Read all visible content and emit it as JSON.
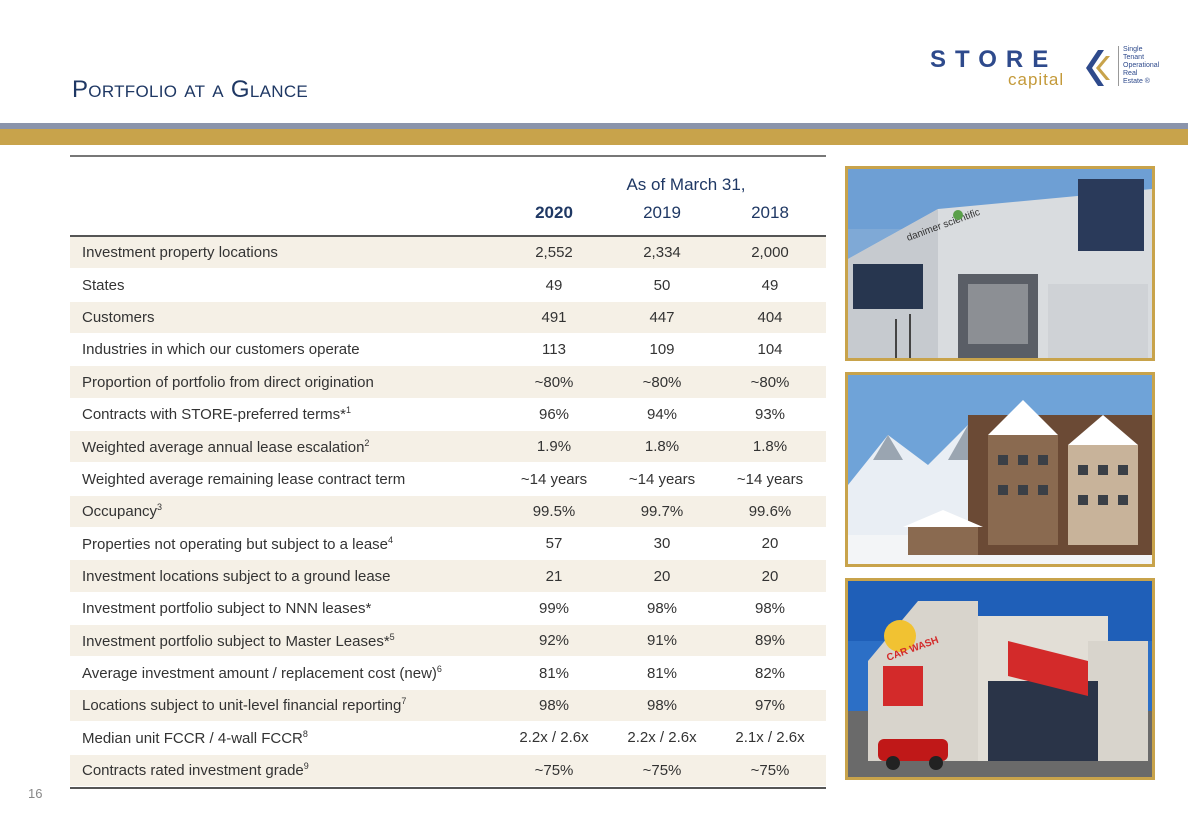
{
  "title": "Portfolio at a Glance",
  "logo": {
    "wordmark": "STORE",
    "sub": "capital",
    "tagline": [
      "Single",
      "Tenant",
      "Operational",
      "Real",
      "Estate ®"
    ]
  },
  "table": {
    "as_of": "As of March 31,",
    "years": [
      "2020",
      "2019",
      "2018"
    ],
    "rows": [
      {
        "label": "Investment property locations",
        "sup": "",
        "values": [
          "2,552",
          "2,334",
          "2,000"
        ]
      },
      {
        "label": "States",
        "sup": "",
        "values": [
          "49",
          "50",
          "49"
        ]
      },
      {
        "label": "Customers",
        "sup": "",
        "values": [
          "491",
          "447",
          "404"
        ]
      },
      {
        "label": "Industries in which our customers operate",
        "sup": "",
        "values": [
          "113",
          "109",
          "104"
        ]
      },
      {
        "label": "Proportion of portfolio from direct origination",
        "sup": "",
        "values": [
          "~80%",
          "~80%",
          "~80%"
        ]
      },
      {
        "label": "Contracts with STORE-preferred terms*",
        "sup": "1",
        "values": [
          "96%",
          "94%",
          "93%"
        ]
      },
      {
        "label": "Weighted average annual lease escalation",
        "sup": "2",
        "values": [
          "1.9%",
          "1.8%",
          "1.8%"
        ]
      },
      {
        "label": "Weighted average remaining lease contract term",
        "sup": "",
        "values": [
          "~14 years",
          "~14 years",
          "~14 years"
        ]
      },
      {
        "label": "Occupancy",
        "sup": "3",
        "values": [
          "99.5%",
          "99.7%",
          "99.6%"
        ]
      },
      {
        "label": "Properties not operating but subject to a lease",
        "sup": "4",
        "values": [
          "57",
          "30",
          "20"
        ]
      },
      {
        "label": "Investment locations subject to a ground lease",
        "sup": "",
        "values": [
          "21",
          "20",
          "20"
        ]
      },
      {
        "label": "Investment portfolio subject to NNN leases*",
        "sup": "",
        "values": [
          "99%",
          "98%",
          "98%"
        ]
      },
      {
        "label": "Investment portfolio subject to Master Leases*",
        "sup": "5",
        "values": [
          "92%",
          "91%",
          "89%"
        ]
      },
      {
        "label": "Average investment amount / replacement cost (new)",
        "sup": "6",
        "values": [
          "81%",
          "81%",
          "82%"
        ]
      },
      {
        "label": "Locations subject to unit-level financial reporting",
        "sup": "7",
        "values": [
          "98%",
          "98%",
          "97%"
        ]
      },
      {
        "label": "Median unit FCCR / 4-wall FCCR",
        "sup": "8",
        "values": [
          "2.2x / 2.6x",
          "2.2x / 2.6x",
          "2.1x / 2.6x"
        ]
      },
      {
        "label": "Contracts rated investment grade",
        "sup": "9",
        "values": [
          "~75%",
          "~75%",
          "~75%"
        ]
      }
    ]
  },
  "photos": {
    "building_sign": "danimer scientific",
    "carwash_sign": "CAR WASH"
  },
  "page_number": "16",
  "colors": {
    "navy": "#1f3864",
    "gold": "#c8a34b",
    "band_grey": "#8a94ab",
    "row_shade": "#f5f0e6"
  }
}
